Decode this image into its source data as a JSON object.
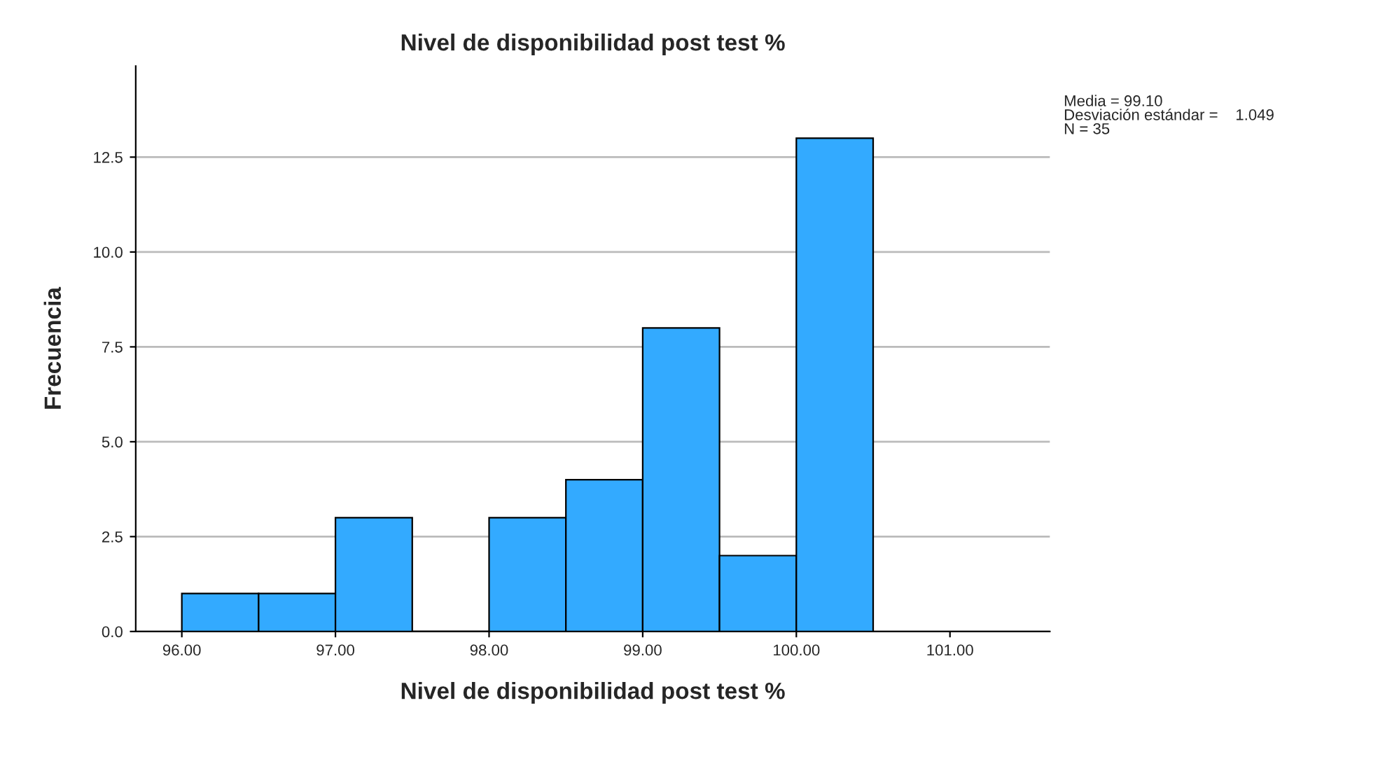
{
  "chart_data": {
    "type": "histogram",
    "title": "Nivel de disponibilidad post test %",
    "xlabel": "Nivel de disponibilidad post test %",
    "ylabel": "Frecuencia",
    "bins": [
      96.0,
      96.5,
      97.0,
      97.5,
      98.0,
      98.5,
      99.0,
      99.5,
      100.0,
      100.5
    ],
    "values": [
      1,
      1,
      3,
      0,
      3,
      4,
      8,
      2,
      13
    ],
    "color": "#33aaff",
    "xlim": [
      95.7,
      101.65
    ],
    "xticks": [
      {
        "value": 96,
        "label": "96.00"
      },
      {
        "value": 97,
        "label": "97.00"
      },
      {
        "value": 98,
        "label": "98.00"
      },
      {
        "value": 99,
        "label": "99.00"
      },
      {
        "value": 100,
        "label": "100.00"
      },
      {
        "value": 101,
        "label": "101.00"
      }
    ],
    "ylim": [
      0,
      14.9
    ],
    "yticks": [
      {
        "value": 0,
        "label": "0.0"
      },
      {
        "value": 2.5,
        "label": "2.5"
      },
      {
        "value": 5,
        "label": "5.0"
      },
      {
        "value": 7.5,
        "label": "7.5"
      },
      {
        "value": 10,
        "label": "10.0"
      },
      {
        "value": 12.5,
        "label": "12.5"
      }
    ],
    "grid": "y",
    "annotations": [
      "Media = 99.10\nDesviación estándar =    1.049\nN = 35"
    ]
  }
}
